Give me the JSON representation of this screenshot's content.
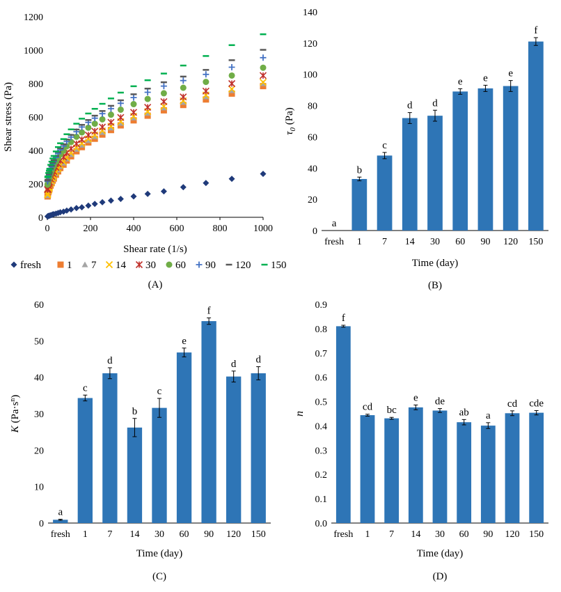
{
  "chart_data": [
    {
      "id": "A",
      "type": "scatter",
      "caption": "(A)",
      "xlabel": "Shear rate (1/s)",
      "ylabel": "Shear stress (Pa)",
      "xlim": [
        0,
        1000
      ],
      "ylim": [
        0,
        1200
      ],
      "xticks": [
        0,
        200,
        400,
        600,
        800,
        1000
      ],
      "yticks": [
        0,
        200,
        400,
        600,
        800,
        1000,
        1200
      ],
      "legend_position": "bottom",
      "x": [
        1,
        2,
        5,
        8,
        10,
        15,
        20,
        25,
        30,
        40,
        50,
        60,
        75,
        90,
        110,
        135,
        160,
        190,
        220,
        255,
        295,
        340,
        400,
        465,
        540,
        630,
        735,
        855,
        1000
      ],
      "series": [
        {
          "name": "fresh",
          "marker": "diamond",
          "color": "#1F3A7A",
          "values": [
            5,
            6,
            8,
            9,
            10,
            12,
            14,
            17,
            19,
            22,
            26,
            30,
            34,
            40,
            47,
            55,
            60,
            70,
            80,
            90,
            100,
            110,
            125,
            140,
            155,
            180,
            205,
            230,
            260
          ]
        },
        {
          "name": "1",
          "marker": "square",
          "color": "#ED7D31",
          "values": [
            125,
            130,
            150,
            162,
            170,
            190,
            205,
            220,
            232,
            255,
            275,
            295,
            315,
            340,
            365,
            395,
            420,
            448,
            470,
            495,
            522,
            550,
            580,
            608,
            640,
            672,
            705,
            740,
            785
          ]
        },
        {
          "name": "7",
          "marker": "triangle",
          "color": "#A5A5A5",
          "values": [
            130,
            135,
            155,
            168,
            177,
            197,
            212,
            228,
            240,
            263,
            284,
            304,
            325,
            350,
            376,
            407,
            432,
            460,
            483,
            508,
            535,
            563,
            595,
            623,
            655,
            688,
            722,
            758,
            800
          ]
        },
        {
          "name": "14",
          "marker": "x",
          "color": "#FFC000",
          "values": [
            135,
            140,
            160,
            173,
            182,
            202,
            218,
            234,
            246,
            270,
            291,
            311,
            333,
            358,
            384,
            415,
            441,
            469,
            492,
            517,
            544,
            572,
            604,
            632,
            664,
            697,
            731,
            767,
            808
          ]
        },
        {
          "name": "30",
          "marker": "star",
          "color": "#C0302A",
          "values": [
            165,
            170,
            190,
            202,
            210,
            230,
            245,
            262,
            274,
            298,
            320,
            340,
            360,
            385,
            410,
            440,
            465,
            492,
            515,
            540,
            568,
            597,
            628,
            658,
            692,
            720,
            755,
            800,
            848
          ]
        },
        {
          "name": "60",
          "marker": "circle",
          "color": "#70AD47",
          "values": [
            195,
            200,
            220,
            232,
            240,
            262,
            279,
            296,
            308,
            333,
            355,
            376,
            398,
            425,
            451,
            482,
            508,
            536,
            560,
            586,
            614,
            644,
            677,
            708,
            742,
            775,
            810,
            848,
            895
          ]
        },
        {
          "name": "90",
          "marker": "plus",
          "color": "#4472C4",
          "values": [
            215,
            220,
            240,
            253,
            262,
            284,
            302,
            320,
            333,
            358,
            382,
            403,
            426,
            453,
            480,
            512,
            540,
            568,
            593,
            620,
            650,
            682,
            716,
            748,
            785,
            818,
            855,
            898,
            955
          ]
        },
        {
          "name": "120",
          "marker": "dash",
          "color": "#595959",
          "values": [
            220,
            225,
            245,
            258,
            268,
            291,
            309,
            327,
            341,
            367,
            391,
            413,
            437,
            465,
            493,
            525,
            553,
            582,
            608,
            636,
            667,
            700,
            736,
            770,
            808,
            842,
            882,
            940,
            1002
          ]
        },
        {
          "name": "150",
          "marker": "dash",
          "color": "#00B050",
          "values": [
            240,
            245,
            265,
            279,
            290,
            314,
            333,
            352,
            367,
            394,
            420,
            443,
            468,
            497,
            526,
            560,
            590,
            621,
            649,
            679,
            711,
            746,
            784,
            820,
            860,
            908,
            965,
            1030,
            1095
          ]
        }
      ]
    },
    {
      "id": "B",
      "type": "bar",
      "caption": "(B)",
      "xlabel": "Time (day)",
      "ylabel": "τ₀ (Pa)",
      "ylim": [
        0,
        140
      ],
      "yticks": [
        0,
        20,
        40,
        60,
        80,
        100,
        120,
        140
      ],
      "color": "#2E75B6",
      "categories": [
        "fresh",
        "1",
        "7",
        "14",
        "30",
        "60",
        "90",
        "120",
        "150"
      ],
      "values": [
        0,
        33,
        48,
        72,
        73.5,
        89,
        91,
        92.5,
        121
      ],
      "errors": [
        0,
        1.2,
        2,
        3.5,
        3.5,
        1.8,
        2,
        3.5,
        2.5
      ],
      "letters": [
        "a",
        "b",
        "c",
        "d",
        "d",
        "e",
        "e",
        "e",
        "f"
      ]
    },
    {
      "id": "C",
      "type": "bar",
      "caption": "(C)",
      "xlabel": "Time (day)",
      "ylabel": "K (Pa·sⁿ)",
      "ylim": [
        0,
        60
      ],
      "yticks": [
        0,
        10,
        20,
        30,
        40,
        50,
        60
      ],
      "color": "#2E75B6",
      "categories": [
        "fresh",
        "1",
        "7",
        "14",
        "30",
        "60",
        "90",
        "120",
        "150"
      ],
      "values": [
        0.9,
        34.3,
        41.1,
        26.2,
        31.6,
        46.8,
        55.4,
        40.2,
        41.1
      ],
      "errors": [
        0.15,
        0.8,
        1.5,
        2.5,
        2.6,
        1.2,
        0.9,
        1.5,
        1.8
      ],
      "letters": [
        "a",
        "c",
        "d",
        "b",
        "c",
        "e",
        "f",
        "d",
        "d"
      ]
    },
    {
      "id": "D",
      "type": "bar",
      "caption": "(D)",
      "xlabel": "Time (day)",
      "ylabel": "n",
      "ylim": [
        0,
        0.9
      ],
      "yticks": [
        0.0,
        0.1,
        0.2,
        0.3,
        0.4,
        0.5,
        0.6,
        0.7,
        0.8,
        0.9
      ],
      "color": "#2E75B6",
      "categories": [
        "fresh",
        "1",
        "7",
        "14",
        "30",
        "60",
        "90",
        "120",
        "150"
      ],
      "values": [
        0.81,
        0.444,
        0.431,
        0.476,
        0.463,
        0.415,
        0.401,
        0.452,
        0.454
      ],
      "errors": [
        0.004,
        0.004,
        0.004,
        0.01,
        0.008,
        0.011,
        0.012,
        0.01,
        0.009
      ],
      "letters": [
        "f",
        "cd",
        "bc",
        "e",
        "de",
        "ab",
        "a",
        "cd",
        "cde"
      ]
    }
  ]
}
